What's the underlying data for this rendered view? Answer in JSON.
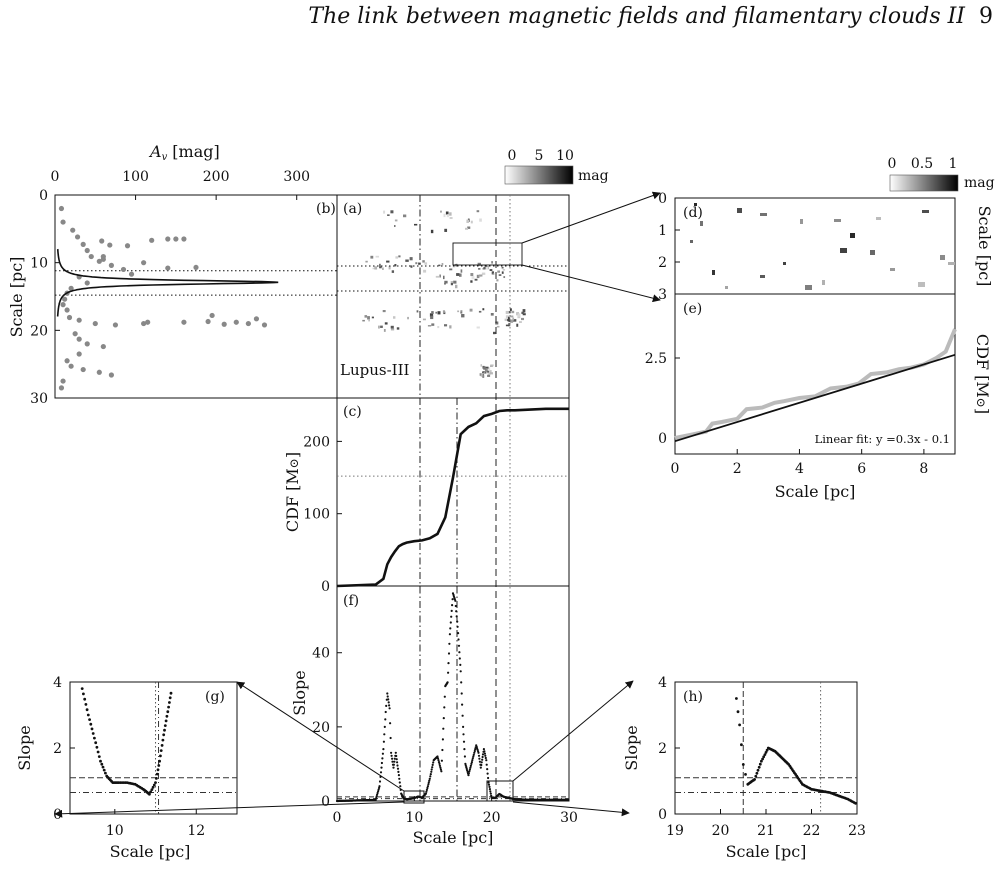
{
  "header": {
    "title": "The link between magnetic fields and filamentary clouds II",
    "page_number": "9"
  },
  "colorbars": {
    "main": {
      "ticks": [
        "0",
        "5",
        "10"
      ],
      "unit": "mag"
    },
    "inset": {
      "ticks": [
        "0",
        "0.5",
        "1"
      ],
      "unit": "mag"
    }
  },
  "panel_labels": {
    "a": "(a)",
    "b": "(b)",
    "c": "(c)",
    "d": "(d)",
    "e": "(e)",
    "f": "(f)",
    "g": "(g)",
    "h": "(h)"
  },
  "region_label": "Lupus-III",
  "fit_label": "Linear fit: y =0.3x - 0.1",
  "chart_data": [
    {
      "panel": "(b)",
      "type": "scatter",
      "xlabel": "A_v [mag]",
      "ylabel": "Scale [pc]",
      "xlim": [
        0,
        350
      ],
      "ylim": [
        30,
        0
      ],
      "xticks": [
        "0",
        "100",
        "200",
        "300"
      ],
      "yticks": [
        "0",
        "10",
        "20",
        "30"
      ],
      "hlines": [
        11.2,
        14.8
      ],
      "profile_peak": {
        "y": 12.9,
        "x": 275
      },
      "points": [
        [
          8,
          2
        ],
        [
          10,
          4
        ],
        [
          22,
          5.2
        ],
        [
          28,
          6.2
        ],
        [
          35,
          7.3
        ],
        [
          40,
          8.2
        ],
        [
          45,
          9.1
        ],
        [
          60,
          9.5
        ],
        [
          55,
          9.8
        ],
        [
          70,
          10.4
        ],
        [
          85,
          11
        ],
        [
          95,
          11.7
        ],
        [
          30,
          12.1
        ],
        [
          40,
          13
        ],
        [
          20,
          13.8
        ],
        [
          15,
          14.5
        ],
        [
          12,
          15.4
        ],
        [
          10,
          16.2
        ],
        [
          15,
          17
        ],
        [
          18,
          18.1
        ],
        [
          30,
          18.5
        ],
        [
          50,
          19
        ],
        [
          75,
          19.2
        ],
        [
          110,
          19
        ],
        [
          160,
          18.8
        ],
        [
          190,
          18.7
        ],
        [
          210,
          19.1
        ],
        [
          25,
          20.5
        ],
        [
          30,
          21.3
        ],
        [
          40,
          22
        ],
        [
          60,
          22.4
        ],
        [
          30,
          23.5
        ],
        [
          15,
          24.5
        ],
        [
          20,
          25.3
        ],
        [
          35,
          25.8
        ],
        [
          55,
          26.2
        ],
        [
          70,
          26.6
        ],
        [
          10,
          27.5
        ],
        [
          8,
          28.5
        ],
        [
          140,
          6.5
        ],
        [
          160,
          6.5
        ],
        [
          150,
          6.5
        ],
        [
          120,
          6.7
        ],
        [
          58,
          6.8
        ],
        [
          68,
          7.4
        ],
        [
          90,
          7.5
        ],
        [
          60,
          9.1
        ],
        [
          110,
          10
        ],
        [
          140,
          10.8
        ],
        [
          175,
          10.7
        ],
        [
          115,
          18.8
        ],
        [
          225,
          18.8
        ],
        [
          240,
          19
        ],
        [
          260,
          19.2
        ],
        [
          250,
          18.3
        ],
        [
          195,
          17.8
        ]
      ]
    },
    {
      "panel": "(c)",
      "type": "line",
      "xlabel": "",
      "ylabel": "CDF [M_sun]",
      "xlim": [
        0,
        30
      ],
      "ylim": [
        0,
        260
      ],
      "yticks": [
        "0",
        "100",
        "200"
      ],
      "x": [
        0,
        5,
        6,
        6.5,
        7,
        7.5,
        8,
        8.5,
        9,
        10,
        11,
        12,
        13,
        14,
        15,
        16,
        17,
        18,
        19,
        20,
        21,
        22,
        23,
        25,
        27,
        30
      ],
      "y": [
        0,
        2,
        10,
        30,
        40,
        48,
        55,
        58,
        60,
        62,
        63,
        66,
        72,
        95,
        150,
        210,
        220,
        225,
        235,
        238,
        242,
        243,
        243,
        244,
        245,
        245
      ],
      "hline": 152,
      "vlines": [
        11.2,
        15.5,
        20.6,
        22.2
      ]
    },
    {
      "panel": "(f)",
      "type": "scatter",
      "xlabel": "Scale [pc]",
      "ylabel": "Slope",
      "xlim": [
        0,
        30
      ],
      "ylim": [
        0,
        58
      ],
      "xticks": [
        "0",
        "10",
        "20",
        "30"
      ],
      "yticks": [
        "0",
        "20",
        "40"
      ],
      "x": [
        0,
        5,
        5.5,
        6,
        6.3,
        6.5,
        6.8,
        7,
        7.3,
        7.6,
        8,
        8.3,
        8.6,
        9,
        9.5,
        10,
        10.5,
        11,
        11.5,
        12,
        12.5,
        13,
        13.5,
        14,
        14.3,
        14.6,
        15,
        15.3,
        15.6,
        16,
        16.3,
        16.6,
        17,
        17.5,
        18,
        18.3,
        18.6,
        19,
        19.3,
        19.6,
        20,
        20.5,
        21,
        21.5,
        22,
        22.5,
        23,
        24,
        25,
        26,
        27,
        28,
        29,
        30
      ],
      "y": [
        0,
        0.3,
        4,
        14,
        24,
        29,
        25,
        13,
        9,
        13,
        7,
        2,
        0.7,
        0.5,
        0.6,
        0.8,
        1.2,
        0.9,
        2,
        6,
        11,
        12,
        8,
        31,
        32,
        45,
        56,
        54,
        47,
        35,
        20,
        10,
        7,
        11,
        15,
        13,
        9,
        14,
        11,
        5,
        0.8,
        0.9,
        1.9,
        1.2,
        0.9,
        0.7,
        0.5,
        0.4,
        0.3,
        0.3,
        0.3,
        0.3,
        0.3,
        0.3
      ],
      "hlines": [
        1.1,
        0.65
      ],
      "vlines": [
        11.2,
        15.5,
        20.6,
        22.2
      ]
    },
    {
      "panel": "(e)",
      "type": "line",
      "xlabel": "Scale [pc]",
      "ylabel": "CDF [M_sun]",
      "xlim": [
        0,
        9
      ],
      "ylim": [
        -0.5,
        4.5
      ],
      "xticks": [
        "0",
        "2",
        "4",
        "6",
        "8"
      ],
      "yticks": [
        "0",
        "2.5"
      ],
      "fit": {
        "slope": 0.3,
        "intercept": -0.1
      },
      "x": [
        0,
        0.5,
        1,
        1.2,
        1.5,
        2,
        2.3,
        2.8,
        3.2,
        3.5,
        4,
        4.5,
        5,
        5.5,
        5.9,
        6.3,
        6.8,
        7.2,
        7.6,
        8,
        8.4,
        8.7,
        9
      ],
      "y": [
        0,
        0.1,
        0.2,
        0.45,
        0.5,
        0.6,
        0.9,
        0.95,
        1.1,
        1.15,
        1.25,
        1.3,
        1.55,
        1.6,
        1.7,
        2,
        2.05,
        2.15,
        2.2,
        2.3,
        2.5,
        2.7,
        3.4
      ]
    },
    {
      "panel": "(d)",
      "type": "heatmap",
      "xlabel": "",
      "ylabel": "Scale [pc]",
      "ylim": [
        0,
        3
      ],
      "yticks": [
        "0",
        "1",
        "2",
        "3"
      ]
    },
    {
      "panel": "(g)",
      "type": "scatter",
      "xlabel": "Scale [pc]",
      "ylabel": "Slope",
      "xlim": [
        8.9,
        13
      ],
      "ylim": [
        0,
        4
      ],
      "xticks": [
        "10",
        "12"
      ],
      "yticks": [
        "0",
        "2",
        "4"
      ],
      "x": [
        9.2,
        9.35,
        9.5,
        9.65,
        9.8,
        9.95,
        10.1,
        10.3,
        10.5,
        10.7,
        10.85,
        11,
        11.1,
        11.2,
        11.3,
        11.4
      ],
      "y": [
        3.8,
        3,
        2.3,
        1.6,
        1.15,
        0.95,
        0.95,
        0.95,
        0.9,
        0.75,
        0.6,
        0.95,
        1.6,
        2.4,
        3.1,
        3.8
      ],
      "hlines": [
        1.1,
        0.65
      ],
      "vline": 11.0
    },
    {
      "panel": "(h)",
      "type": "scatter",
      "xlabel": "Scale [pc]",
      "ylabel": "Slope",
      "xlim": [
        19,
        23
      ],
      "ylim": [
        0,
        4
      ],
      "xticks": [
        "19",
        "20",
        "21",
        "22",
        "23"
      ],
      "yticks": [
        "0",
        "2",
        "4"
      ],
      "x": [
        20.35,
        20.42,
        20.5,
        20.6,
        20.75,
        20.9,
        21.05,
        21.2,
        21.35,
        21.5,
        21.65,
        21.8,
        22,
        22.2,
        22.4,
        22.6,
        22.8,
        23
      ],
      "y": [
        3.5,
        2.7,
        1.5,
        0.9,
        1.05,
        1.6,
        2,
        1.9,
        1.7,
        1.5,
        1.2,
        0.9,
        0.75,
        0.7,
        0.65,
        0.55,
        0.45,
        0.3
      ],
      "hlines": [
        1.1,
        0.65
      ],
      "vlines": [
        20.5,
        22.2
      ]
    }
  ]
}
